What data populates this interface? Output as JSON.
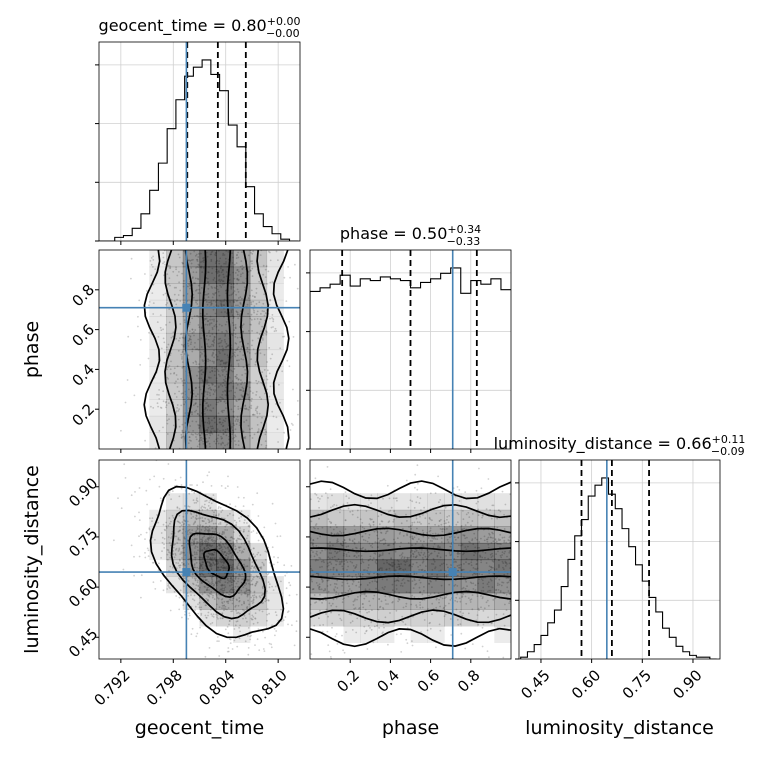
{
  "chart_data": {
    "type": "corner",
    "parameters": [
      {
        "name": "geocent_time",
        "axis_label": "geocent_time",
        "title_main": "geocent_time = 0.80",
        "title_plus": "+0.00",
        "title_minus": "−0.00",
        "range": [
          0.7895,
          0.8125
        ],
        "ticks": [
          0.792,
          0.798,
          0.804,
          0.81
        ],
        "tick_labels": [
          "0.792",
          "0.798",
          "0.804",
          "0.810"
        ],
        "truth": 0.7995,
        "quantiles": [
          0.7996,
          0.8031,
          0.8063
        ],
        "hist_x": [
          0.7898,
          0.7908,
          0.7918,
          0.7928,
          0.7938,
          0.7948,
          0.7958,
          0.7968,
          0.7978,
          0.7988,
          0.7998,
          0.8008,
          0.8018,
          0.8028,
          0.8038,
          0.8048,
          0.8058,
          0.8068,
          0.8078,
          0.8088,
          0.8098,
          0.8108,
          0.8118
        ],
        "hist_y": [
          0.0,
          0.0,
          0.02,
          0.03,
          0.07,
          0.15,
          0.28,
          0.43,
          0.62,
          0.78,
          0.91,
          0.96,
          1.0,
          0.92,
          0.83,
          0.64,
          0.52,
          0.3,
          0.15,
          0.08,
          0.04,
          0.01,
          0.0
        ]
      },
      {
        "name": "phase",
        "axis_label": "phase",
        "title_main": "phase = 0.50",
        "title_plus": "+0.34",
        "title_minus": "−0.33",
        "range": [
          0.0,
          1.0
        ],
        "ticks": [
          0.2,
          0.4,
          0.6,
          0.8
        ],
        "tick_labels": [
          "0.2",
          "0.4",
          "0.6",
          "0.8"
        ],
        "truth": 0.71,
        "quantiles": [
          0.16,
          0.5,
          0.83
        ],
        "hist_x": [
          0.025,
          0.075,
          0.125,
          0.175,
          0.225,
          0.275,
          0.325,
          0.375,
          0.425,
          0.475,
          0.525,
          0.575,
          0.625,
          0.675,
          0.725,
          0.775,
          0.825,
          0.875,
          0.925,
          0.975
        ],
        "hist_y": [
          0.87,
          0.89,
          0.91,
          0.96,
          0.9,
          0.94,
          0.93,
          0.95,
          0.94,
          0.93,
          0.89,
          0.92,
          0.94,
          0.97,
          1.0,
          0.86,
          0.93,
          0.91,
          0.94,
          0.88
        ]
      },
      {
        "name": "luminosity_distance",
        "axis_label": "luminosity_distance",
        "title_main": "luminosity_distance = 0.66",
        "title_plus": "+0.11",
        "title_minus": "−0.09",
        "range": [
          0.385,
          0.98
        ],
        "ticks": [
          0.45,
          0.6,
          0.75,
          0.9
        ],
        "tick_labels": [
          "0.45",
          "0.60",
          "0.75",
          "0.90"
        ],
        "truth": 0.645,
        "quantiles": [
          0.57,
          0.66,
          0.77
        ],
        "hist_x": [
          0.4,
          0.42,
          0.44,
          0.46,
          0.48,
          0.5,
          0.52,
          0.54,
          0.56,
          0.58,
          0.6,
          0.62,
          0.64,
          0.66,
          0.68,
          0.7,
          0.72,
          0.74,
          0.76,
          0.78,
          0.8,
          0.82,
          0.84,
          0.86,
          0.88,
          0.9,
          0.92,
          0.94,
          0.96
        ],
        "hist_y": [
          0.01,
          0.04,
          0.08,
          0.13,
          0.2,
          0.27,
          0.4,
          0.55,
          0.68,
          0.77,
          0.9,
          0.96,
          1.0,
          0.91,
          0.83,
          0.72,
          0.62,
          0.52,
          0.43,
          0.34,
          0.26,
          0.17,
          0.12,
          0.07,
          0.04,
          0.02,
          0.01,
          0.01,
          0.0
        ]
      }
    ],
    "colors": {
      "truth": "#4682b4",
      "hist": "#000000",
      "grid": "#d0d0d0",
      "density": "#000000"
    },
    "grid": true
  }
}
